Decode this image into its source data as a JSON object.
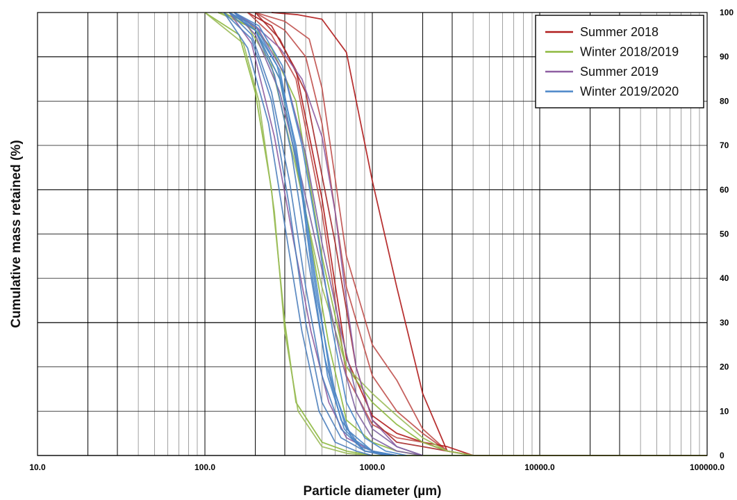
{
  "chart_data": {
    "type": "line",
    "title": "",
    "xlabel": "Particle diameter (µm)",
    "ylabel": "Cumulative mass retained (%)",
    "x_scale": "log",
    "xlim": [
      10,
      100000
    ],
    "ylim": [
      0,
      100
    ],
    "x_tick_labels": [
      "10.0",
      "100.0",
      "1000.0",
      "10000.0",
      "100000.0"
    ],
    "y_tick_labels": [
      "0",
      "10",
      "20",
      "30",
      "40",
      "50",
      "60",
      "70",
      "80",
      "90",
      "100"
    ],
    "grid": true,
    "legend_position": "top-right",
    "series": [
      {
        "name": "Summer 2018",
        "color": "#b01c1c",
        "sample": 1,
        "points": [
          [
            250,
            100
          ],
          [
            360,
            99.5
          ],
          [
            500,
            98.5
          ],
          [
            700,
            91
          ],
          [
            1000,
            62
          ],
          [
            1400,
            38
          ],
          [
            2000,
            14
          ],
          [
            2800,
            1
          ],
          [
            4000,
            0
          ],
          [
            100000,
            0
          ]
        ]
      },
      {
        "name": "Summer 2018",
        "color": "#c0504d",
        "sample": 2,
        "points": [
          [
            200,
            100
          ],
          [
            300,
            98
          ],
          [
            420,
            94
          ],
          [
            500,
            83
          ],
          [
            700,
            45
          ],
          [
            1000,
            25
          ],
          [
            1400,
            17
          ],
          [
            2000,
            6
          ],
          [
            2800,
            1
          ],
          [
            4000,
            0
          ]
        ]
      },
      {
        "name": "Summer 2018",
        "color": "#c0504d",
        "sample": 3,
        "points": [
          [
            200,
            100
          ],
          [
            300,
            96
          ],
          [
            400,
            90
          ],
          [
            500,
            75
          ],
          [
            700,
            38
          ],
          [
            1000,
            18
          ],
          [
            1400,
            10
          ],
          [
            2000,
            5
          ],
          [
            2800,
            1
          ],
          [
            4000,
            0
          ]
        ]
      },
      {
        "name": "Summer 2018",
        "color": "#b01c1c",
        "sample": 4,
        "points": [
          [
            180,
            100
          ],
          [
            250,
            97
          ],
          [
            350,
            87
          ],
          [
            500,
            58
          ],
          [
            700,
            22
          ],
          [
            1000,
            9
          ],
          [
            1400,
            5
          ],
          [
            2000,
            3
          ],
          [
            2800,
            2
          ],
          [
            4000,
            0
          ]
        ]
      },
      {
        "name": "Summer 2018",
        "color": "#c0504d",
        "sample": 5,
        "points": [
          [
            180,
            100
          ],
          [
            250,
            95
          ],
          [
            350,
            85
          ],
          [
            500,
            55
          ],
          [
            700,
            18
          ],
          [
            1000,
            7
          ],
          [
            1400,
            4
          ],
          [
            2000,
            3
          ],
          [
            2800,
            1
          ],
          [
            4000,
            0
          ]
        ]
      },
      {
        "name": "Summer 2018",
        "color": "#a52a2a",
        "sample": 6,
        "points": [
          [
            200,
            100
          ],
          [
            280,
            94
          ],
          [
            400,
            82
          ],
          [
            600,
            48
          ],
          [
            800,
            20
          ],
          [
            1000,
            8
          ],
          [
            1400,
            3
          ],
          [
            2000,
            2
          ],
          [
            2800,
            1
          ],
          [
            4000,
            0
          ]
        ]
      },
      {
        "name": "Winter 2018/2019",
        "color": "#8db83f",
        "sample": 1,
        "points": [
          [
            100,
            100
          ],
          [
            160,
            95
          ],
          [
            200,
            82
          ],
          [
            250,
            60
          ],
          [
            300,
            30
          ],
          [
            350,
            12
          ],
          [
            500,
            3
          ],
          [
            700,
            1
          ],
          [
            1000,
            0
          ],
          [
            100000,
            0
          ]
        ]
      },
      {
        "name": "Winter 2018/2019",
        "color": "#9bbb59",
        "sample": 2,
        "points": [
          [
            100,
            100
          ],
          [
            170,
            93
          ],
          [
            210,
            80
          ],
          [
            260,
            55
          ],
          [
            300,
            28
          ],
          [
            360,
            10
          ],
          [
            500,
            2
          ],
          [
            700,
            0.5
          ],
          [
            1000,
            0
          ]
        ]
      },
      {
        "name": "Winter 2018/2019",
        "color": "#8db83f",
        "sample": 3,
        "points": [
          [
            120,
            100
          ],
          [
            180,
            98
          ],
          [
            250,
            92
          ],
          [
            350,
            80
          ],
          [
            500,
            45
          ],
          [
            700,
            20
          ],
          [
            1000,
            12
          ],
          [
            1400,
            7
          ],
          [
            2000,
            3
          ],
          [
            2800,
            1
          ],
          [
            4000,
            0
          ]
        ]
      },
      {
        "name": "Winter 2018/2019",
        "color": "#9bbb59",
        "sample": 4,
        "points": [
          [
            120,
            100
          ],
          [
            180,
            97
          ],
          [
            250,
            88
          ],
          [
            350,
            65
          ],
          [
            500,
            38
          ],
          [
            700,
            20
          ],
          [
            1000,
            14
          ],
          [
            1400,
            9
          ],
          [
            2000,
            4
          ],
          [
            2800,
            1
          ],
          [
            4000,
            0
          ]
        ]
      },
      {
        "name": "Winter 2018/2019",
        "color": "#8db83f",
        "sample": 5,
        "points": [
          [
            130,
            100
          ],
          [
            200,
            96
          ],
          [
            280,
            85
          ],
          [
            400,
            55
          ],
          [
            550,
            25
          ],
          [
            700,
            8
          ],
          [
            1000,
            3
          ],
          [
            1400,
            1
          ],
          [
            2000,
            0
          ]
        ]
      },
      {
        "name": "Summer 2019",
        "color": "#8e5ea2",
        "sample": 1,
        "points": [
          [
            150,
            100
          ],
          [
            200,
            97
          ],
          [
            280,
            92
          ],
          [
            380,
            85
          ],
          [
            500,
            72
          ],
          [
            600,
            55
          ],
          [
            700,
            35
          ],
          [
            800,
            20
          ],
          [
            1000,
            8
          ],
          [
            1400,
            2
          ],
          [
            2000,
            0
          ]
        ]
      },
      {
        "name": "Summer 2019",
        "color": "#8064a2",
        "sample": 2,
        "points": [
          [
            150,
            100
          ],
          [
            200,
            95
          ],
          [
            280,
            82
          ],
          [
            380,
            62
          ],
          [
            500,
            42
          ],
          [
            650,
            22
          ],
          [
            800,
            10
          ],
          [
            1000,
            4
          ],
          [
            1400,
            1
          ],
          [
            2000,
            0
          ]
        ]
      },
      {
        "name": "Summer 2019",
        "color": "#8e5ea2",
        "sample": 3,
        "points": [
          [
            140,
            100
          ],
          [
            190,
            93
          ],
          [
            260,
            72
          ],
          [
            340,
            48
          ],
          [
            430,
            28
          ],
          [
            550,
            12
          ],
          [
            700,
            4
          ],
          [
            1000,
            1
          ],
          [
            1400,
            0
          ]
        ]
      },
      {
        "name": "Summer 2019",
        "color": "#8064a2",
        "sample": 4,
        "points": [
          [
            150,
            100
          ],
          [
            210,
            96
          ],
          [
            300,
            86
          ],
          [
            400,
            68
          ],
          [
            500,
            48
          ],
          [
            650,
            28
          ],
          [
            800,
            14
          ],
          [
            1000,
            6
          ],
          [
            1400,
            2
          ],
          [
            2000,
            0
          ]
        ]
      },
      {
        "name": "Winter 2019/2020",
        "color": "#4a86c8",
        "sample": 1,
        "points": [
          [
            140,
            100
          ],
          [
            200,
            97
          ],
          [
            270,
            88
          ],
          [
            350,
            70
          ],
          [
            450,
            42
          ],
          [
            560,
            18
          ],
          [
            700,
            6
          ],
          [
            1000,
            1
          ],
          [
            1400,
            0
          ]
        ]
      },
      {
        "name": "Winter 2019/2020",
        "color": "#4f81bd",
        "sample": 2,
        "points": [
          [
            140,
            100
          ],
          [
            190,
            95
          ],
          [
            250,
            82
          ],
          [
            320,
            62
          ],
          [
            400,
            38
          ],
          [
            500,
            18
          ],
          [
            650,
            6
          ],
          [
            900,
            1
          ],
          [
            1400,
            0
          ]
        ]
      },
      {
        "name": "Winter 2019/2020",
        "color": "#4a86c8",
        "sample": 3,
        "points": [
          [
            140,
            100
          ],
          [
            200,
            96
          ],
          [
            280,
            85
          ],
          [
            370,
            62
          ],
          [
            470,
            35
          ],
          [
            600,
            14
          ],
          [
            750,
            4
          ],
          [
            1000,
            1
          ],
          [
            1400,
            0
          ]
        ]
      },
      {
        "name": "Winter 2019/2020",
        "color": "#4f81bd",
        "sample": 4,
        "points": [
          [
            130,
            100
          ],
          [
            180,
            92
          ],
          [
            240,
            75
          ],
          [
            300,
            52
          ],
          [
            380,
            28
          ],
          [
            480,
            10
          ],
          [
            600,
            3
          ],
          [
            800,
            1
          ],
          [
            1000,
            0
          ]
        ]
      },
      {
        "name": "Winter 2019/2020",
        "color": "#4a86c8",
        "sample": 5,
        "points": [
          [
            150,
            100
          ],
          [
            210,
            97
          ],
          [
            290,
            88
          ],
          [
            380,
            70
          ],
          [
            480,
            48
          ],
          [
            580,
            28
          ],
          [
            700,
            12
          ],
          [
            900,
            4
          ],
          [
            1200,
            1
          ],
          [
            1600,
            0
          ]
        ]
      },
      {
        "name": "Winter 2019/2020",
        "color": "#4f81bd",
        "sample": 6,
        "points": [
          [
            140,
            100
          ],
          [
            200,
            96
          ],
          [
            260,
            86
          ],
          [
            330,
            68
          ],
          [
            410,
            45
          ],
          [
            520,
            22
          ],
          [
            650,
            8
          ],
          [
            850,
            2
          ],
          [
            1200,
            0
          ]
        ]
      },
      {
        "name": "Winter 2019/2020",
        "color": "#4a86c8",
        "sample": 7,
        "points": [
          [
            150,
            100
          ],
          [
            200,
            96
          ],
          [
            280,
            87
          ],
          [
            360,
            66
          ],
          [
            440,
            40
          ],
          [
            540,
            18
          ],
          [
            680,
            6
          ],
          [
            900,
            1
          ],
          [
            1300,
            0
          ]
        ]
      },
      {
        "name": "Winter 2019/2020",
        "color": "#4f81bd",
        "sample": 8,
        "points": [
          [
            130,
            100
          ],
          [
            190,
            94
          ],
          [
            250,
            80
          ],
          [
            320,
            56
          ],
          [
            400,
            30
          ],
          [
            500,
            12
          ],
          [
            650,
            4
          ],
          [
            900,
            1
          ],
          [
            1200,
            0
          ]
        ]
      }
    ],
    "legend": [
      {
        "label": "Summer 2018",
        "color": "#b01c1c"
      },
      {
        "label": "Winter 2018/2019",
        "color": "#8db83f"
      },
      {
        "label": "Summer 2019",
        "color": "#8e5ea2"
      },
      {
        "label": "Winter 2019/2020",
        "color": "#4a86c8"
      }
    ]
  }
}
